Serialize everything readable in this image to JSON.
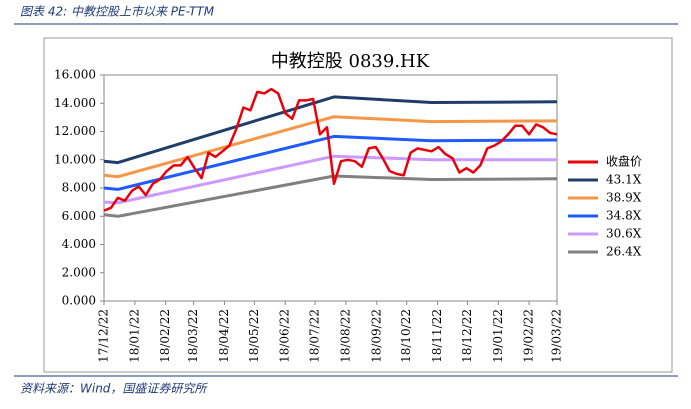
{
  "caption": "图表 42:  中教控股上市以来 PE-TTM",
  "source": "资料来源：Wind，国盛证券研究所",
  "chart_data": {
    "type": "line",
    "title": "中教控股 0839.HK",
    "x": [
      "17/12/22",
      "17/12/29",
      "18/01/05",
      "18/01/12",
      "18/01/19",
      "18/01/26",
      "18/02/02",
      "18/02/09",
      "18/02/16",
      "18/02/23",
      "18/03/02",
      "18/03/09",
      "18/03/16",
      "18/03/23",
      "18/03/30",
      "18/04/06",
      "18/04/13",
      "18/04/20",
      "18/04/27",
      "18/05/04",
      "18/05/11",
      "18/05/18",
      "18/05/25",
      "18/06/01",
      "18/06/08",
      "18/06/15",
      "18/06/22",
      "18/06/29",
      "18/07/06",
      "18/07/13",
      "18/07/20",
      "18/07/27",
      "18/08/03",
      "18/08/10",
      "18/08/17",
      "18/08/24",
      "18/08/31",
      "18/09/07",
      "18/09/14",
      "18/09/21",
      "18/09/28",
      "18/10/05",
      "18/10/12",
      "18/10/19",
      "18/10/26",
      "18/11/02",
      "18/11/09",
      "18/11/16",
      "18/11/23",
      "18/11/30",
      "18/12/07",
      "18/12/14",
      "18/12/21",
      "18/12/28",
      "19/01/04",
      "19/01/11",
      "19/01/18",
      "19/01/25",
      "19/02/01",
      "19/02/08",
      "19/02/15",
      "19/02/22",
      "19/03/01",
      "19/03/08",
      "19/03/15",
      "19/03/22"
    ],
    "series": [
      {
        "name": "收盘价",
        "color": "#e8000b",
        "values": [
          6.4,
          6.6,
          7.3,
          7.1,
          7.8,
          8.1,
          7.5,
          8.3,
          8.6,
          9.2,
          9.6,
          9.6,
          10.2,
          9.4,
          8.7,
          10.5,
          10.2,
          10.6,
          11.0,
          12.2,
          13.7,
          13.5,
          14.8,
          14.7,
          15.0,
          14.7,
          13.3,
          12.9,
          14.2,
          14.2,
          14.3,
          11.8,
          12.3,
          8.3,
          9.9,
          10.0,
          9.9,
          9.5,
          10.8,
          10.9,
          10.1,
          9.2,
          9.0,
          8.9,
          10.5,
          10.8,
          10.7,
          10.6,
          10.9,
          10.4,
          10.1,
          9.1,
          9.4,
          9.1,
          9.6,
          10.8,
          11.0,
          11.3,
          11.8,
          12.4,
          12.4,
          11.8,
          12.5,
          12.3,
          11.9,
          11.8
        ]
      },
      {
        "name": "43.1X",
        "color": "#1f3d6b",
        "x": [
          "17/12/22",
          "18/01/05",
          "18/08/10",
          "18/11/16",
          "19/03/22"
        ],
        "values": [
          9.9,
          9.8,
          14.45,
          14.05,
          14.1
        ]
      },
      {
        "name": "38.9X",
        "color": "#f79646",
        "x": [
          "17/12/22",
          "18/01/05",
          "18/08/10",
          "18/11/16",
          "19/03/22"
        ],
        "values": [
          8.9,
          8.8,
          13.05,
          12.7,
          12.75
        ]
      },
      {
        "name": "34.8X",
        "color": "#1e5bff",
        "x": [
          "17/12/22",
          "18/01/05",
          "18/08/10",
          "18/11/16",
          "19/03/22"
        ],
        "values": [
          8.0,
          7.9,
          11.65,
          11.35,
          11.4
        ]
      },
      {
        "name": "30.6X",
        "color": "#cc99ff",
        "x": [
          "17/12/22",
          "18/01/05",
          "18/08/10",
          "18/11/16",
          "19/03/22"
        ],
        "values": [
          7.0,
          6.95,
          10.25,
          10.0,
          10.0
        ]
      },
      {
        "name": "26.4X",
        "color": "#808080",
        "x": [
          "17/12/22",
          "18/01/05",
          "18/08/10",
          "18/11/16",
          "19/03/22"
        ],
        "values": [
          6.1,
          6.0,
          8.85,
          8.6,
          8.65
        ]
      }
    ],
    "xlim": [
      "17/12/22",
      "19/03/22"
    ],
    "xticks": [
      "17/12/22",
      "18/01/22",
      "18/02/22",
      "18/03/22",
      "18/04/22",
      "18/05/22",
      "18/06/22",
      "18/07/22",
      "18/08/22",
      "18/09/22",
      "18/10/22",
      "18/11/22",
      "18/12/22",
      "19/01/22",
      "19/02/22",
      "19/03/22"
    ],
    "ylim": [
      0,
      16
    ],
    "yticks": [
      {
        "value": 0,
        "label": "0.000"
      },
      {
        "value": 2,
        "label": "2.000"
      },
      {
        "value": 4,
        "label": "4.000"
      },
      {
        "value": 6,
        "label": "6.000"
      },
      {
        "value": 8,
        "label": "8.000"
      },
      {
        "value": 10,
        "label": "10.000"
      },
      {
        "value": 12,
        "label": "12.000"
      },
      {
        "value": 14,
        "label": "14.000"
      },
      {
        "value": 16,
        "label": "16.000"
      }
    ],
    "grid": false,
    "legend": "right"
  }
}
